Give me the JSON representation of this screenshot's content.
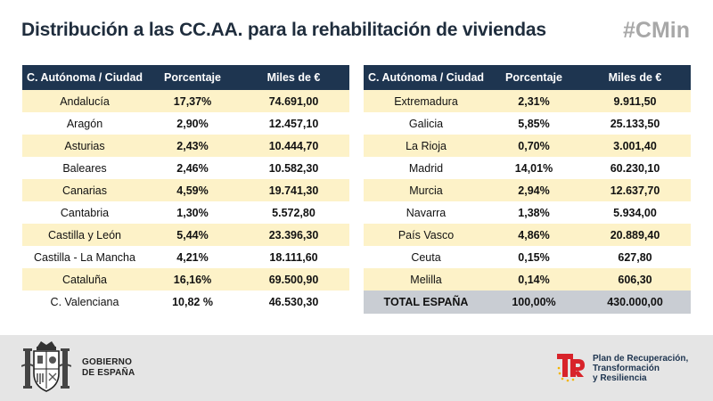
{
  "header": {
    "title": "Distribución a las CC.AA. para la rehabilitación de viviendas",
    "hashtag": "#CMin"
  },
  "table_left": {
    "headers": [
      "C. Autónoma / Ciudad",
      "Porcentaje",
      "Miles de €"
    ],
    "rows": [
      {
        "region": "Andalucía",
        "pct": "17,37%",
        "amount": "74.691,00"
      },
      {
        "region": "Aragón",
        "pct": "2,90%",
        "amount": "12.457,10"
      },
      {
        "region": "Asturias",
        "pct": "2,43%",
        "amount": "10.444,70"
      },
      {
        "region": "Baleares",
        "pct": "2,46%",
        "amount": "10.582,30"
      },
      {
        "region": "Canarias",
        "pct": "4,59%",
        "amount": "19.741,30"
      },
      {
        "region": "Cantabria",
        "pct": "1,30%",
        "amount": "5.572,80"
      },
      {
        "region": "Castilla y León",
        "pct": "5,44%",
        "amount": "23.396,30"
      },
      {
        "region": "Castilla - La Mancha",
        "pct": "4,21%",
        "amount": "18.111,60"
      },
      {
        "region": "Cataluña",
        "pct": "16,16%",
        "amount": "69.500,90"
      },
      {
        "region": "C. Valenciana",
        "pct": "10,82 %",
        "amount": "46.530,30"
      }
    ]
  },
  "table_right": {
    "headers": [
      "C. Autónoma / Ciudad",
      "Porcentaje",
      "Miles de €"
    ],
    "rows": [
      {
        "region": "Extremadura",
        "pct": "2,31%",
        "amount": "9.911,50"
      },
      {
        "region": "Galicia",
        "pct": "5,85%",
        "amount": "25.133,50"
      },
      {
        "region": "La Rioja",
        "pct": "0,70%",
        "amount": "3.001,40"
      },
      {
        "region": "Madrid",
        "pct": "14,01%",
        "amount": "60.230,10"
      },
      {
        "region": "Murcia",
        "pct": "2,94%",
        "amount": "12.637,70"
      },
      {
        "region": "Navarra",
        "pct": "1,38%",
        "amount": "5.934,00"
      },
      {
        "region": "País Vasco",
        "pct": "4,86%",
        "amount": "20.889,40"
      },
      {
        "region": "Ceuta",
        "pct": "0,15%",
        "amount": "627,80"
      },
      {
        "region": "Melilla",
        "pct": "0,14%",
        "amount": "606,30"
      }
    ],
    "total": {
      "region": "TOTAL ESPAÑA",
      "pct": "100,00%",
      "amount": "430.000,00"
    }
  },
  "footer": {
    "government_line1": "GOBIERNO",
    "government_line2": "DE ESPAÑA",
    "plan_line1": "Plan de Recuperación,",
    "plan_line2": "Transformación",
    "plan_line3": "y Resiliencia",
    "coat_icon": "coat-of-arms-icon",
    "plan_icon": "prtr-logo-icon"
  },
  "colors": {
    "header_bg": "#1e3550",
    "row_highlight": "#fdf2c8",
    "total_bg": "#c9cdd3",
    "footer_bg": "#e5e5e5",
    "logo_red": "#d8232a",
    "logo_yellow": "#f3b400"
  }
}
